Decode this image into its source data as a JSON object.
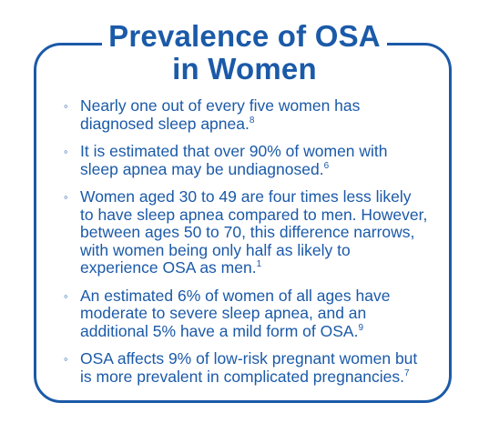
{
  "title": {
    "line1": "Prevalence of OSA",
    "line2": "in Women"
  },
  "colors": {
    "accent": "#1b5aa8",
    "background": "#ffffff"
  },
  "bullet_marker": "◦",
  "bullets": [
    {
      "text": "Nearly one out of every five women has diagnosed sleep apnea.",
      "ref": "8"
    },
    {
      "text": "It is estimated that over 90% of women with sleep apnea may be undiagnosed.",
      "ref": "6"
    },
    {
      "text": "Women aged 30 to 49 are four times less likely to have sleep apnea compared to men. However, between ages 50 to 70, this difference narrows, with women being only half as likely to experience OSA as men.",
      "ref": "1"
    },
    {
      "text": "An estimated 6% of women of all ages have moderate to severe sleep apnea, and an additional 5% have a mild form of OSA.",
      "ref": "9"
    },
    {
      "text": "OSA affects 9% of low-risk pregnant women but is more prevalent in complicated pregnancies.",
      "ref": "7"
    }
  ]
}
